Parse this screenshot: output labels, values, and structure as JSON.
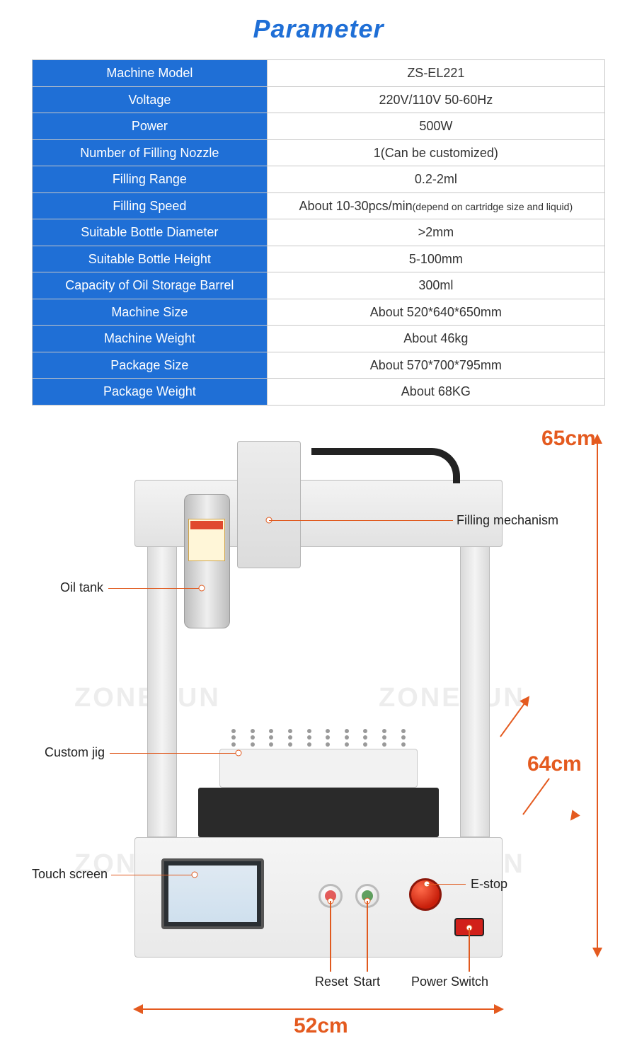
{
  "title": {
    "text": "Parameter",
    "color": "#1f6fd6"
  },
  "table": {
    "key_bg": "#1f6fd6",
    "rows": [
      {
        "key": "Machine Model",
        "val": "ZS-EL221"
      },
      {
        "key": "Voltage",
        "val": "220V/110V 50-60Hz"
      },
      {
        "key": "Power",
        "val": "500W"
      },
      {
        "key": "Number of Filling Nozzle",
        "val": "1(Can be customized)"
      },
      {
        "key": "Filling Range",
        "val": "0.2-2ml"
      },
      {
        "key": "Filling Speed",
        "val": "About 10-30pcs/min",
        "val_sub": "(depend on cartridge size and liquid)"
      },
      {
        "key": "Suitable Bottle Diameter",
        "val": ">2mm"
      },
      {
        "key": "Suitable Bottle Height",
        "val": "5-100mm"
      },
      {
        "key": "Capacity of Oil Storage Barrel",
        "val": "300ml"
      },
      {
        "key": "Machine Size",
        "val": "About 520*640*650mm"
      },
      {
        "key": "Machine Weight",
        "val": "About 46kg"
      },
      {
        "key": "Package Size",
        "val": "About 570*700*795mm"
      },
      {
        "key": "Package Weight",
        "val": "About 68KG"
      }
    ]
  },
  "diagram": {
    "accent_color": "#e45a1f",
    "watermark": "ZONESUN",
    "dimensions": {
      "height": "65cm",
      "depth": "64cm",
      "width": "52cm"
    },
    "labels": {
      "oil_tank": "Oil tank",
      "filling_mechanism": "Filling mechanism",
      "custom_jig": "Custom jig",
      "touch_screen": "Touch screen",
      "reset": "Reset",
      "start": "Start",
      "power_switch": "Power Switch",
      "e_stop": "E-stop"
    }
  }
}
